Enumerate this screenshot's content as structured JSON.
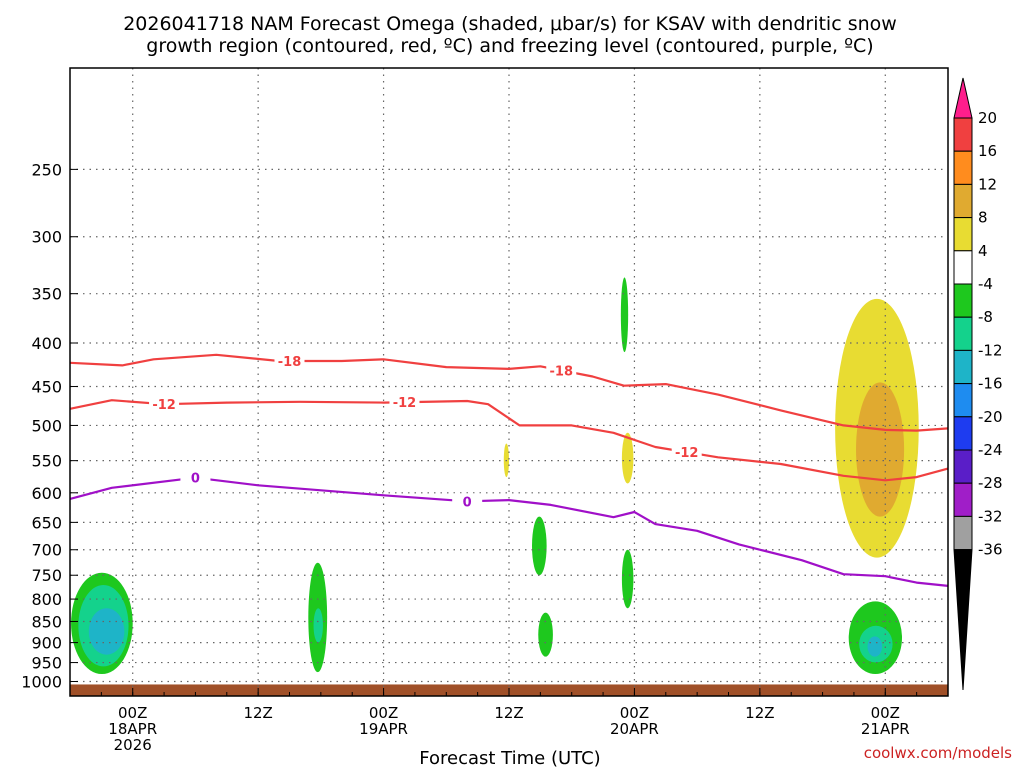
{
  "chart_data": {
    "type": "time-height contour",
    "title_line1": "2026041718 NAM Forecast Omega (shaded, μbar/s) for KSAV with dendritic snow",
    "title_line2": "growth region (contoured, red, ºC) and freezing level (contoured, purple, ºC)",
    "xlabel": "Forecast Time (UTC)",
    "ylabel": "",
    "credit": "coolwx.com/models",
    "y_axis": {
      "scale": "log-pressure",
      "range_hpa": [
        1040,
        190
      ],
      "ticks": [
        "250",
        "300",
        "350",
        "400",
        "450",
        "500",
        "550",
        "600",
        "650",
        "700",
        "750",
        "800",
        "850",
        "900",
        "950",
        "1000"
      ]
    },
    "x_axis": {
      "unit": "hours from 2026041718",
      "range_hours": [
        0,
        84
      ],
      "ticks": [
        {
          "h": 6,
          "line1": "00Z",
          "line2": "18APR",
          "line3": "2026"
        },
        {
          "h": 18,
          "line1": "12Z",
          "line2": "",
          "line3": ""
        },
        {
          "h": 30,
          "line1": "00Z",
          "line2": "19APR",
          "line3": ""
        },
        {
          "h": 42,
          "line1": "12Z",
          "line2": "",
          "line3": ""
        },
        {
          "h": 54,
          "line1": "00Z",
          "line2": "20APR",
          "line3": ""
        },
        {
          "h": 66,
          "line1": "12Z",
          "line2": "",
          "line3": ""
        },
        {
          "h": 78,
          "line1": "00Z",
          "line2": "21APR",
          "line3": ""
        }
      ]
    },
    "grid": true,
    "colorbar": {
      "labels": [
        "20",
        "16",
        "12",
        "8",
        "4",
        "-4",
        "-8",
        "-12",
        "-16",
        "-20",
        "-24",
        "-28",
        "-32",
        "-36"
      ],
      "colors": [
        "#ff1e8c",
        "#f04040",
        "#ff8c1e",
        "#e0aa30",
        "#e8dc32",
        "#ffffff",
        "#1ec81e",
        "#14d28c",
        "#1eb4c8",
        "#1e8cf0",
        "#1e3cf0",
        "#5a1ec8",
        "#a01ec8",
        "#a0a0a0",
        "#000000"
      ]
    },
    "contours": {
      "isotherm_minus18": {
        "label": "-18",
        "color": "#f04040",
        "labels_at": [
          21,
          47
        ],
        "points": [
          [
            0,
            422
          ],
          [
            5,
            425
          ],
          [
            8,
            418
          ],
          [
            14,
            413
          ],
          [
            20,
            420
          ],
          [
            26,
            420
          ],
          [
            30,
            418
          ],
          [
            36,
            427
          ],
          [
            42,
            429
          ],
          [
            45,
            426
          ],
          [
            50,
            438
          ],
          [
            53,
            449
          ],
          [
            57,
            447
          ],
          [
            62,
            460
          ],
          [
            68,
            480
          ],
          [
            74,
            500
          ],
          [
            78,
            506
          ],
          [
            81,
            507
          ],
          [
            84,
            504
          ]
        ]
      },
      "isotherm_minus12": {
        "label": "-12",
        "color": "#f04040",
        "labels_at": [
          9,
          32,
          59
        ],
        "points": [
          [
            0,
            478
          ],
          [
            4,
            467
          ],
          [
            9,
            472
          ],
          [
            15,
            470
          ],
          [
            22,
            469
          ],
          [
            30,
            470
          ],
          [
            38,
            468
          ],
          [
            40,
            472
          ],
          [
            43,
            500
          ],
          [
            48,
            500
          ],
          [
            52,
            510
          ],
          [
            56,
            530
          ],
          [
            62,
            545
          ],
          [
            68,
            555
          ],
          [
            74,
            573
          ],
          [
            78,
            580
          ],
          [
            81,
            575
          ],
          [
            84,
            562
          ]
        ]
      },
      "freezing_level": {
        "label": "0",
        "color": "#a010c8",
        "labels_at": [
          12,
          38
        ],
        "points": [
          [
            0,
            610
          ],
          [
            4,
            592
          ],
          [
            12,
            576
          ],
          [
            18,
            588
          ],
          [
            24,
            596
          ],
          [
            30,
            604
          ],
          [
            38,
            614
          ],
          [
            42,
            612
          ],
          [
            46,
            620
          ],
          [
            52,
            641
          ],
          [
            54,
            632
          ],
          [
            56,
            653
          ],
          [
            60,
            665
          ],
          [
            64,
            690
          ],
          [
            70,
            720
          ],
          [
            74,
            748
          ],
          [
            78,
            752
          ],
          [
            81,
            765
          ],
          [
            84,
            772
          ]
        ]
      }
    },
    "omega_shading": [
      {
        "band": "-8 to -4",
        "color": "#1ec81e",
        "h": [
          0.1,
          6.0
        ],
        "p": [
          745,
          980
        ]
      },
      {
        "band": "-12 to -8",
        "color": "#14d28c",
        "h": [
          0.8,
          5.6
        ],
        "p": [
          770,
          960
        ]
      },
      {
        "band": "-16 to -12",
        "color": "#1eb4c8",
        "h": [
          1.8,
          5.2
        ],
        "p": [
          820,
          930
        ]
      },
      {
        "band": "-8 to -4",
        "color": "#1ec81e",
        "h": [
          22.8,
          24.6
        ],
        "p": [
          725,
          975
        ]
      },
      {
        "band": "-12 to -8",
        "color": "#14d28c",
        "h": [
          23.3,
          24.2
        ],
        "p": [
          820,
          900
        ]
      },
      {
        "band": "-8 to -4",
        "color": "#1ec81e",
        "h": [
          44.2,
          45.6
        ],
        "p": [
          640,
          750
        ]
      },
      {
        "band": "-8 to -4",
        "color": "#1ec81e",
        "h": [
          44.8,
          46.2
        ],
        "p": [
          830,
          935
        ]
      },
      {
        "band": "-8 to -4",
        "color": "#1ec81e",
        "h": [
          52.7,
          53.4
        ],
        "p": [
          335,
          410
        ]
      },
      {
        "band": "-8 to -4",
        "color": "#1ec81e",
        "h": [
          52.8,
          53.9
        ],
        "p": [
          700,
          820
        ]
      },
      {
        "band": "-8 to -4",
        "color": "#1ec81e",
        "h": [
          74.5,
          79.6
        ],
        "p": [
          805,
          980
        ]
      },
      {
        "band": "-12 to -8",
        "color": "#14d28c",
        "h": [
          75.5,
          78.7
        ],
        "p": [
          860,
          950
        ]
      },
      {
        "band": "-16 to -12",
        "color": "#1eb4c8",
        "h": [
          76.3,
          77.7
        ],
        "p": [
          885,
          935
        ]
      },
      {
        "band": "4 to 8",
        "color": "#e8dc32",
        "h": [
          41.5,
          42.0
        ],
        "p": [
          525,
          575
        ]
      },
      {
        "band": "4 to 8",
        "color": "#e8dc32",
        "h": [
          52.8,
          53.9
        ],
        "p": [
          510,
          585
        ]
      },
      {
        "band": "4 to 8",
        "color": "#e8dc32",
        "h": [
          73.2,
          81.2
        ],
        "p": [
          355,
          715
        ]
      },
      {
        "band": "8 to 12",
        "color": "#e0aa30",
        "h": [
          75.2,
          79.8
        ],
        "p": [
          445,
          640
        ]
      }
    ],
    "ground": {
      "color": "#a05028",
      "p_top": 1008
    }
  }
}
